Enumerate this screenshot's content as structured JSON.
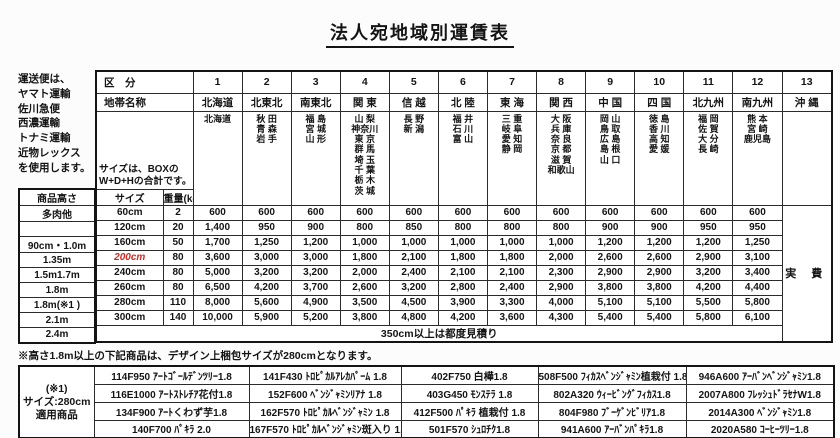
{
  "title": "法人宛地域別運賃表",
  "carrier_note_lines": [
    "運送便は、",
    "ヤマト運輸",
    "佐川急便",
    "西濃運輸",
    "トナミ運輸",
    "近物レックス",
    "を使用します。"
  ],
  "freight_table": {
    "corner_header": "区　分",
    "zone_label_header": "地帯名称",
    "size_note_lines": [
      "サイズは、BOXの",
      "W+D+Hの合計です。"
    ],
    "size_header": "サイズ",
    "weight_header": "重量(kg)",
    "height_header": "商品高さ",
    "okinawa_fee": "実 費",
    "zones": [
      {
        "no": "1",
        "name": "北海道",
        "prefectures": [
          "北海道"
        ]
      },
      {
        "no": "2",
        "name": "北東北",
        "prefectures": [
          "秋 田",
          "青 森",
          "岩 手"
        ]
      },
      {
        "no": "3",
        "name": "南東北",
        "prefectures": [
          "福 島",
          "宮 城",
          "山 形"
        ]
      },
      {
        "no": "4",
        "name": "関 東",
        "prefectures": [
          "山 梨",
          "神奈川",
          "東 京",
          "群 馬",
          "埼 玉",
          "千 葉",
          "栃 木",
          "茨 城"
        ]
      },
      {
        "no": "5",
        "name": "信 越",
        "prefectures": [
          "長 野",
          "新 潟"
        ]
      },
      {
        "no": "6",
        "name": "北 陸",
        "prefectures": [
          "福 井",
          "石 川",
          "富 山"
        ]
      },
      {
        "no": "7",
        "name": "東 海",
        "prefectures": [
          "三 重",
          "岐 阜",
          "愛 知",
          "静 岡"
        ]
      },
      {
        "no": "8",
        "name": "関 西",
        "prefectures": [
          "大 阪",
          "兵 庫",
          "奈 良",
          "京 都",
          "滋 賀",
          "和歌山"
        ]
      },
      {
        "no": "9",
        "name": "中 国",
        "prefectures": [
          "岡 山",
          "鳥 取",
          "広 島",
          "島 根",
          "山 口"
        ]
      },
      {
        "no": "10",
        "name": "四 国",
        "prefectures": [
          "徳 島",
          "香 川",
          "高 知",
          "愛 媛"
        ]
      },
      {
        "no": "11",
        "name": "北九州",
        "prefectures": [
          "福 岡",
          "佐 賀",
          "大 分",
          "長 崎"
        ]
      },
      {
        "no": "12",
        "name": "南九州",
        "prefectures": [
          "熊 本",
          "宮 崎",
          "鹿児島"
        ]
      },
      {
        "no": "13",
        "name": "沖 縄",
        "prefectures": []
      }
    ],
    "rows": [
      {
        "height": "多肉他",
        "size": "60cm",
        "red": false,
        "weight": "2",
        "values": [
          "600",
          "600",
          "600",
          "600",
          "600",
          "600",
          "600",
          "600",
          "600",
          "600",
          "600",
          "600"
        ]
      },
      {
        "height": "",
        "size": "120cm",
        "red": false,
        "weight": "20",
        "values": [
          "1,400",
          "950",
          "900",
          "800",
          "850",
          "800",
          "800",
          "800",
          "900",
          "900",
          "950",
          "950"
        ]
      },
      {
        "height": "90cm・1.0m",
        "size": "160cm",
        "red": false,
        "weight": "50",
        "values": [
          "1,700",
          "1,250",
          "1,200",
          "1,000",
          "1,000",
          "1,000",
          "1,000",
          "1,000",
          "1,200",
          "1,200",
          "1,200",
          "1,250"
        ]
      },
      {
        "height": "1.35m",
        "size": "200cm",
        "red": true,
        "weight": "80",
        "values": [
          "3,600",
          "3,000",
          "3,000",
          "1,800",
          "2,100",
          "1,800",
          "1,800",
          "2,000",
          "2,600",
          "2,600",
          "2,900",
          "3,100"
        ]
      },
      {
        "height": "1.5m1.7m",
        "size": "240cm",
        "red": false,
        "weight": "80",
        "values": [
          "5,000",
          "3,200",
          "3,200",
          "2,000",
          "2,400",
          "2,100",
          "2,100",
          "2,300",
          "2,900",
          "2,900",
          "3,200",
          "3,400"
        ]
      },
      {
        "height": "1.8m",
        "size": "260cm",
        "red": false,
        "weight": "80",
        "values": [
          "6,500",
          "4,200",
          "3,700",
          "2,600",
          "3,200",
          "2,800",
          "2,400",
          "2,900",
          "3,800",
          "3,800",
          "4,200",
          "4,400"
        ]
      },
      {
        "height": "1.8m(※1 )",
        "size": "280cm",
        "red": false,
        "weight": "110",
        "values": [
          "8,000",
          "5,600",
          "4,900",
          "3,500",
          "4,500",
          "3,900",
          "3,300",
          "4,000",
          "5,100",
          "5,100",
          "5,500",
          "5,800"
        ]
      },
      {
        "height": "2.1m",
        "size": "300cm",
        "red": false,
        "weight": "140",
        "values": [
          "10,000",
          "5,900",
          "5,200",
          "3,800",
          "4,800",
          "4,200",
          "3,600",
          "4,300",
          "5,400",
          "5,400",
          "5,800",
          "6,100"
        ]
      }
    ],
    "oversize_row": {
      "height": "2.4m",
      "note": "350cm以上は都度見積り"
    }
  },
  "footnote": "※高さ1.8m以上の下記商品は、デザイン上梱包サイズが280cmとなります。",
  "sku_table": {
    "label_lines": [
      "(※1)",
      "サイズ:280cm",
      "適用商品"
    ],
    "rows": [
      [
        "114F950 ｱｰﾄｺﾞｰﾙﾃﾞﾝﾂﾘｰ1.8",
        "141F430 ﾄﾛﾋﾟｶﾙｱﾚｶﾊﾟｰﾑ 1.8",
        "402F750 白樺1.8",
        "508F500 ﾌｨｶｽﾍﾞﾝｼﾞｬﾐﾝ植栽付 1.8",
        "946A600 ｱｰﾊﾞﾝﾍﾞﾝｼﾞｬﾐﾝ1.8"
      ],
      [
        "116E1000 ｱｰﾄｽﾄﾚﾁｱ花付1.8",
        "152F600 ﾍﾞﾝｼﾞｬﾐﾝﾘｱﾅ 1.8",
        "403G450 ﾓﾝｽﾃﾗ 1.8",
        "802A320 ｳｨｰﾋﾞﾝｸﾞﾌｨｶｽ1.8",
        "2007A800 ﾌﾚｯｼｭﾄﾞﾗｾﾅW1.8"
      ],
      [
        "134F900 ｱｰﾄくわず芋1.8",
        "162F570 ﾄﾛﾋﾟｶﾙﾍﾞﾝｼﾞｬﾐﾝ 1.8",
        "412F500 ﾊﾟｷﾗ 植栽付 1.8",
        "804F980 ﾌﾞｰｹﾞﾝﾋﾞﾘｱ1.8",
        "2014A300 ﾍﾞﾝｼﾞｬﾐﾝ1.8"
      ],
      [
        "140F700 ﾊﾟｷﾗ 2.0",
        "167F570 ﾄﾛﾋﾟｶﾙﾍﾞﾝｼﾞｬﾐﾝ斑入り 1.8",
        "501F570 ｼｭﾛﾁｸ1.8",
        "941A600 ｱｰﾊﾞﾝﾊﾟｷﾗ1.8",
        "2020A580 ｺｰﾋｰﾂﾘｰ1.8"
      ]
    ]
  }
}
